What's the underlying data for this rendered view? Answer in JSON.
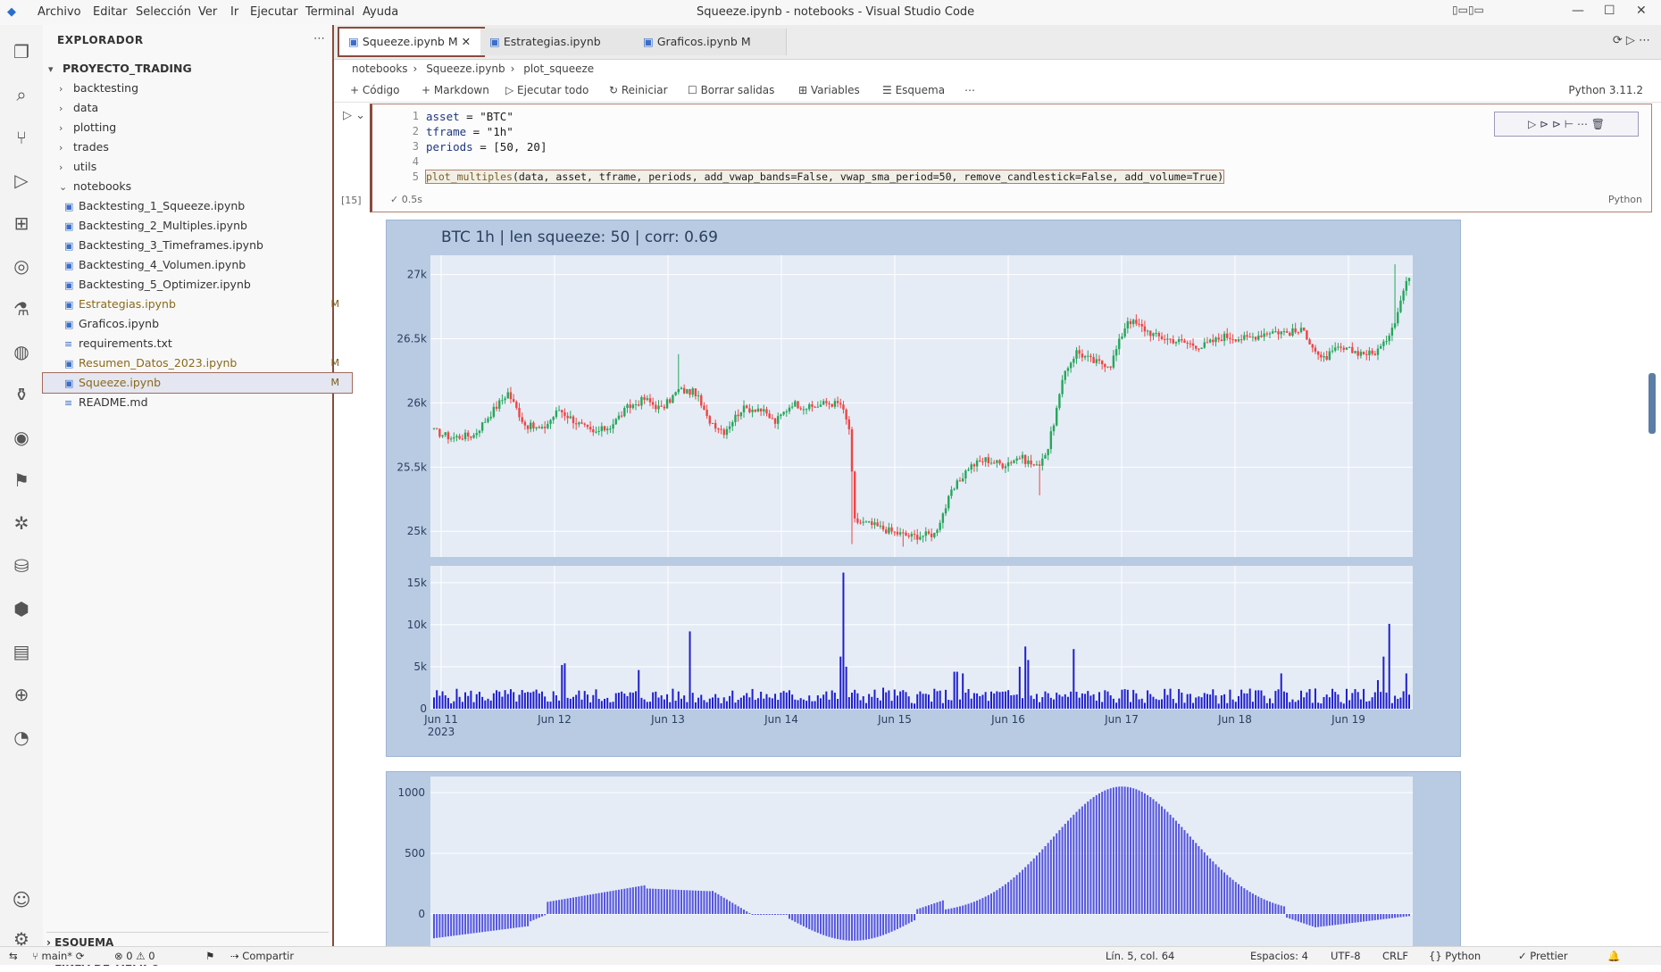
{
  "titlebar": {
    "menus": [
      "Archivo",
      "Editar",
      "Selección",
      "Ver",
      "Ir",
      "Ejecutar",
      "Terminal",
      "Ayuda"
    ],
    "title": "Squeeze.ipynb - notebooks - Visual Studio Code",
    "controls": [
      "—",
      "☐",
      "✕"
    ]
  },
  "sidebar": {
    "header": "EXPLORADOR",
    "root": "PROYECTO_TRADING",
    "items": [
      {
        "label": "backtesting",
        "kind": "folder"
      },
      {
        "label": "data",
        "kind": "folder"
      },
      {
        "label": "plotting",
        "kind": "folder"
      },
      {
        "label": "trades",
        "kind": "folder"
      },
      {
        "label": "utils",
        "kind": "folder"
      },
      {
        "label": "notebooks",
        "kind": "folder-open"
      },
      {
        "label": "Backtesting_1_Squeeze.ipynb",
        "kind": "nb"
      },
      {
        "label": "Backtesting_2_Multiples.ipynb",
        "kind": "nb"
      },
      {
        "label": "Backtesting_3_Timeframes.ipynb",
        "kind": "nb"
      },
      {
        "label": "Backtesting_4_Volumen.ipynb",
        "kind": "nb"
      },
      {
        "label": "Backtesting_5_Optimizer.ipynb",
        "kind": "nb"
      },
      {
        "label": "Estrategias.ipynb",
        "kind": "nb",
        "badge": "M"
      },
      {
        "label": "Graficos.ipynb",
        "kind": "nb"
      },
      {
        "label": "requirements.txt",
        "kind": "file"
      },
      {
        "label": "Resumen_Datos_2023.ipynb",
        "kind": "nb",
        "badge": "M"
      },
      {
        "label": "Squeeze.ipynb",
        "kind": "nb",
        "badge": "M",
        "selected": true
      },
      {
        "label": "README.md",
        "kind": "file"
      }
    ],
    "sections": [
      "ESQUEMA",
      "LÍNEA DE TIEMPO"
    ]
  },
  "tabs": [
    {
      "label": "Squeeze.ipynb M",
      "active": true
    },
    {
      "label": "Estrategias.ipynb",
      "active": false
    },
    {
      "label": "Graficos.ipynb M",
      "active": false
    }
  ],
  "tab_actions": "⟳ ▷ ⋯",
  "breadcrumb": [
    "notebooks",
    "Squeeze.ipynb",
    "plot_squeeze"
  ],
  "toolbar": {
    "code": "+ Código",
    "markdown": "+ Markdown",
    "run_all": "▷ Ejecutar todo",
    "restart": "↻ Reiniciar",
    "clear": "☐ Borrar salidas",
    "variables": "⊞ Variables",
    "outline": "☰ Esquema",
    "more": "⋯",
    "kernel": "Python 3.11.2"
  },
  "cell": {
    "exec_count": "[15]",
    "lines": [
      {
        "n": "1",
        "html": "asset",
        "rest": " = \"BTC\""
      },
      {
        "n": "2",
        "html": "tframe",
        "rest": " = \"1h\""
      },
      {
        "n": "3",
        "html": "periods",
        "rest": " = [50, 20]"
      },
      {
        "n": "4",
        "html": "",
        "rest": ""
      },
      {
        "n": "5",
        "html": "plot_multiples",
        "rest": "(data, asset, tframe, periods, add_vwap_bands=False, vwap_sma_period=50, remove_candlestick=False, add_volume=True)"
      }
    ],
    "tools": "▷ ⊳ ⊳ ⊢ ⋯ 🗑",
    "status": "✓ 0.5s",
    "lang": "Python"
  },
  "chart_data": [
    {
      "type": "candlestick",
      "title": "BTC 1h | len squeeze: 50 | corr: 0.69",
      "ylim": [
        24800,
        27150
      ],
      "yticks": [
        "25k",
        "25.5k",
        "26k",
        "26.5k",
        "27k"
      ],
      "xticks": [
        "Jun 11",
        "Jun 12",
        "Jun 13",
        "Jun 14",
        "Jun 15",
        "Jun 16",
        "Jun 17",
        "Jun 18",
        "Jun 19"
      ],
      "x_sub": "2023",
      "path_key": [
        [
          0,
          25780
        ],
        [
          6,
          25730
        ],
        [
          14,
          25750
        ],
        [
          20,
          25920
        ],
        [
          26,
          26080
        ],
        [
          32,
          25830
        ],
        [
          38,
          25790
        ],
        [
          44,
          25950
        ],
        [
          50,
          25850
        ],
        [
          56,
          25760
        ],
        [
          62,
          25820
        ],
        [
          68,
          25960
        ],
        [
          74,
          26030
        ],
        [
          80,
          25950
        ],
        [
          86,
          26100
        ],
        [
          92,
          26080
        ],
        [
          96,
          25880
        ],
        [
          102,
          25780
        ],
        [
          108,
          25950
        ],
        [
          114,
          25960
        ],
        [
          120,
          25850
        ],
        [
          126,
          26000
        ],
        [
          132,
          25960
        ],
        [
          138,
          26000
        ],
        [
          143,
          25990
        ],
        [
          146,
          25800
        ],
        [
          148,
          25080
        ],
        [
          154,
          25050
        ],
        [
          162,
          24990
        ],
        [
          168,
          24960
        ],
        [
          176,
          24980
        ],
        [
          182,
          25300
        ],
        [
          188,
          25500
        ],
        [
          194,
          25560
        ],
        [
          200,
          25520
        ],
        [
          206,
          25580
        ],
        [
          212,
          25500
        ],
        [
          216,
          25650
        ],
        [
          222,
          26250
        ],
        [
          226,
          26400
        ],
        [
          232,
          26320
        ],
        [
          238,
          26300
        ],
        [
          244,
          26650
        ],
        [
          248,
          26600
        ],
        [
          254,
          26520
        ],
        [
          262,
          26480
        ],
        [
          270,
          26440
        ],
        [
          278,
          26520
        ],
        [
          286,
          26500
        ],
        [
          294,
          26560
        ],
        [
          300,
          26550
        ],
        [
          306,
          26560
        ],
        [
          312,
          26330
        ],
        [
          318,
          26420
        ],
        [
          324,
          26400
        ],
        [
          330,
          26380
        ],
        [
          334,
          26450
        ],
        [
          338,
          26650
        ],
        [
          342,
          26950
        ]
      ],
      "vol_yticks": [
        "0",
        "5k",
        "10k",
        "15k"
      ],
      "vol_spikes": [
        [
          45,
          5200
        ],
        [
          46,
          5400
        ],
        [
          72,
          4600
        ],
        [
          90,
          9200
        ],
        [
          143,
          6200
        ],
        [
          144,
          16200
        ],
        [
          145,
          5000
        ],
        [
          158,
          2500
        ],
        [
          183,
          4400
        ],
        [
          184,
          4400
        ],
        [
          186,
          4200
        ],
        [
          206,
          5000
        ],
        [
          208,
          7400
        ],
        [
          209,
          5800
        ],
        [
          225,
          7100
        ],
        [
          298,
          4200
        ],
        [
          310,
          2400
        ],
        [
          332,
          3400
        ],
        [
          334,
          6200
        ],
        [
          336,
          10100
        ],
        [
          342,
          4200
        ]
      ]
    },
    {
      "type": "bar",
      "title": "",
      "ylim": [
        -100,
        1100
      ],
      "yticks": [
        "0",
        "500",
        "1000"
      ]
    }
  ]
}
